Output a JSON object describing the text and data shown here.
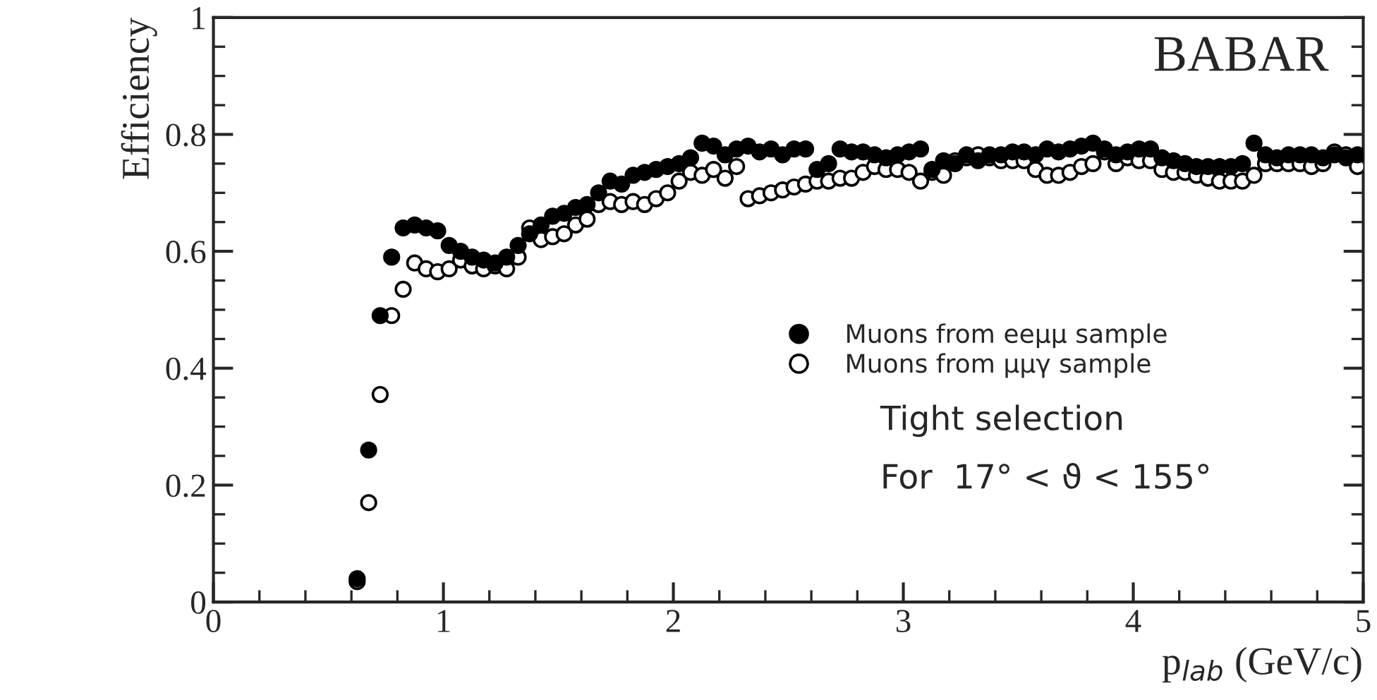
{
  "chart_data": {
    "type": "scatter",
    "xlabel": "p$_{lab}$ (GeV/c)",
    "ylabel": "Efficiency",
    "xlim": [
      0,
      5
    ],
    "ylim": [
      0,
      1
    ],
    "xticks": [
      0,
      1,
      2,
      3,
      4,
      5
    ],
    "yticks": [
      0,
      0.2,
      0.4,
      0.6,
      0.8,
      1
    ],
    "grid": false,
    "legend": "center right",
    "marker": "circle",
    "annotations": [
      "BABAR",
      "Tight selection",
      "For  17° < ϑ < 155°"
    ],
    "series": [
      {
        "name": "Muons from eeμμ sample",
        "color": "#000000",
        "x": [
          0.625,
          0.675,
          0.725,
          0.775,
          0.825,
          0.875,
          0.925,
          0.975,
          1.025,
          1.075,
          1.125,
          1.175,
          1.225,
          1.275,
          1.325,
          1.375,
          1.425,
          1.475,
          1.525,
          1.575,
          1.625,
          1.675,
          1.725,
          1.775,
          1.825,
          1.875,
          1.925,
          1.975,
          2.025,
          2.075,
          2.125,
          2.175,
          2.225,
          2.275,
          2.325,
          2.375,
          2.425,
          2.475,
          2.525,
          2.575,
          2.625,
          2.675,
          2.725,
          2.775,
          2.825,
          2.875,
          2.925,
          2.975,
          3.025,
          3.075,
          3.125,
          3.175,
          3.225,
          3.275,
          3.325,
          3.375,
          3.425,
          3.475,
          3.525,
          3.575,
          3.625,
          3.675,
          3.725,
          3.775,
          3.825,
          3.875,
          3.925,
          3.975,
          4.025,
          4.075,
          4.125,
          4.175,
          4.225,
          4.275,
          4.325,
          4.375,
          4.425,
          4.475,
          4.525,
          4.575,
          4.625,
          4.675,
          4.725,
          4.775,
          4.825,
          4.875,
          4.925,
          4.975
        ],
        "values": [
          0.04,
          0.26,
          0.49,
          0.59,
          0.64,
          0.645,
          0.64,
          0.635,
          0.61,
          0.6,
          0.59,
          0.585,
          0.58,
          0.59,
          0.61,
          0.63,
          0.645,
          0.66,
          0.665,
          0.675,
          0.68,
          0.7,
          0.72,
          0.715,
          0.73,
          0.735,
          0.74,
          0.745,
          0.75,
          0.76,
          0.785,
          0.78,
          0.765,
          0.775,
          0.78,
          0.77,
          0.775,
          0.765,
          0.775,
          0.775,
          0.74,
          0.75,
          0.775,
          0.77,
          0.77,
          0.765,
          0.76,
          0.765,
          0.77,
          0.775,
          0.74,
          0.755,
          0.75,
          0.765,
          0.755,
          0.765,
          0.765,
          0.77,
          0.77,
          0.765,
          0.775,
          0.77,
          0.775,
          0.78,
          0.785,
          0.775,
          0.765,
          0.77,
          0.775,
          0.775,
          0.76,
          0.755,
          0.75,
          0.745,
          0.745,
          0.745,
          0.745,
          0.75,
          0.785,
          0.765,
          0.76,
          0.765,
          0.765,
          0.765,
          0.76,
          0.765,
          0.76,
          0.765
        ]
      },
      {
        "name": "Muons from μμγ sample",
        "color": "#ffffff",
        "x": [
          0.625,
          0.675,
          0.725,
          0.775,
          0.825,
          0.875,
          0.925,
          0.975,
          1.025,
          1.075,
          1.125,
          1.175,
          1.225,
          1.275,
          1.325,
          1.375,
          1.425,
          1.475,
          1.525,
          1.575,
          1.625,
          1.675,
          1.725,
          1.775,
          1.825,
          1.875,
          1.925,
          1.975,
          2.025,
          2.075,
          2.125,
          2.175,
          2.225,
          2.275,
          2.325,
          2.375,
          2.425,
          2.475,
          2.525,
          2.575,
          2.625,
          2.675,
          2.725,
          2.775,
          2.825,
          2.875,
          2.925,
          2.975,
          3.025,
          3.075,
          3.125,
          3.175,
          3.225,
          3.275,
          3.325,
          3.375,
          3.425,
          3.475,
          3.525,
          3.575,
          3.625,
          3.675,
          3.725,
          3.775,
          3.825,
          3.875,
          3.925,
          3.975,
          4.025,
          4.075,
          4.125,
          4.175,
          4.225,
          4.275,
          4.325,
          4.375,
          4.425,
          4.475,
          4.525,
          4.575,
          4.625,
          4.675,
          4.725,
          4.775,
          4.825,
          4.875,
          4.925,
          4.975
        ],
        "values": [
          0.035,
          0.17,
          0.355,
          0.49,
          0.535,
          0.58,
          0.57,
          0.565,
          0.57,
          0.585,
          0.575,
          0.57,
          0.575,
          0.57,
          0.59,
          0.64,
          0.62,
          0.625,
          0.63,
          0.645,
          0.655,
          0.68,
          0.685,
          0.68,
          0.685,
          0.68,
          0.69,
          0.7,
          0.72,
          0.735,
          0.73,
          0.74,
          0.725,
          0.745,
          0.69,
          0.695,
          0.7,
          0.705,
          0.71,
          0.715,
          0.72,
          0.72,
          0.725,
          0.725,
          0.735,
          0.745,
          0.74,
          0.74,
          0.735,
          0.72,
          0.735,
          0.73,
          0.755,
          0.76,
          0.765,
          0.76,
          0.755,
          0.755,
          0.755,
          0.74,
          0.73,
          0.73,
          0.735,
          0.745,
          0.75,
          0.77,
          0.75,
          0.76,
          0.755,
          0.755,
          0.74,
          0.735,
          0.735,
          0.73,
          0.725,
          0.72,
          0.72,
          0.72,
          0.73,
          0.75,
          0.75,
          0.75,
          0.75,
          0.745,
          0.75,
          0.77,
          0.765,
          0.745
        ]
      }
    ]
  }
}
